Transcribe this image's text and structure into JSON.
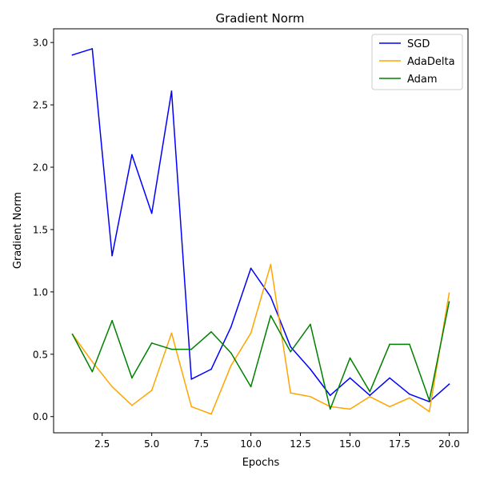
{
  "chart_data": {
    "type": "line",
    "title": "Gradient Norm",
    "xlabel": "Epochs",
    "ylabel": "Gradient Norm",
    "xlim": [
      0.05,
      20.95
    ],
    "ylim": [
      -0.13,
      3.11
    ],
    "xticks": [
      2.5,
      5.0,
      7.5,
      10.0,
      12.5,
      15.0,
      17.5,
      20.0
    ],
    "yticks": [
      0.0,
      0.5,
      1.0,
      1.5,
      2.0,
      2.5,
      3.0
    ],
    "xtick_labels": [
      "2.5",
      "5.0",
      "7.5",
      "10.0",
      "12.5",
      "15.0",
      "17.5",
      "20.0"
    ],
    "ytick_labels": [
      "0.0",
      "0.5",
      "1.0",
      "1.5",
      "2.0",
      "2.5",
      "3.0"
    ],
    "grid": false,
    "legend_position": "top-right",
    "x": [
      1,
      2,
      3,
      4,
      5,
      6,
      7,
      8,
      9,
      10,
      11,
      12,
      13,
      14,
      15,
      16,
      17,
      18,
      19,
      20
    ],
    "series": [
      {
        "name": "SGD",
        "color": "#0000ff",
        "values": [
          2.9,
          2.95,
          1.29,
          2.1,
          1.63,
          2.61,
          0.3,
          0.38,
          0.72,
          1.19,
          0.96,
          0.56,
          0.38,
          0.17,
          0.31,
          0.17,
          0.31,
          0.18,
          0.12,
          0.26
        ]
      },
      {
        "name": "AdaDelta",
        "color": "#ffa500",
        "values": [
          0.66,
          0.44,
          0.24,
          0.09,
          0.21,
          0.67,
          0.08,
          0.02,
          0.41,
          0.67,
          1.22,
          0.19,
          0.16,
          0.08,
          0.06,
          0.16,
          0.08,
          0.15,
          0.04,
          0.99
        ]
      },
      {
        "name": "Adam",
        "color": "#008000",
        "values": [
          0.66,
          0.36,
          0.77,
          0.31,
          0.59,
          0.54,
          0.54,
          0.68,
          0.51,
          0.24,
          0.81,
          0.52,
          0.74,
          0.06,
          0.47,
          0.2,
          0.58,
          0.58,
          0.13,
          0.92
        ]
      }
    ]
  }
}
